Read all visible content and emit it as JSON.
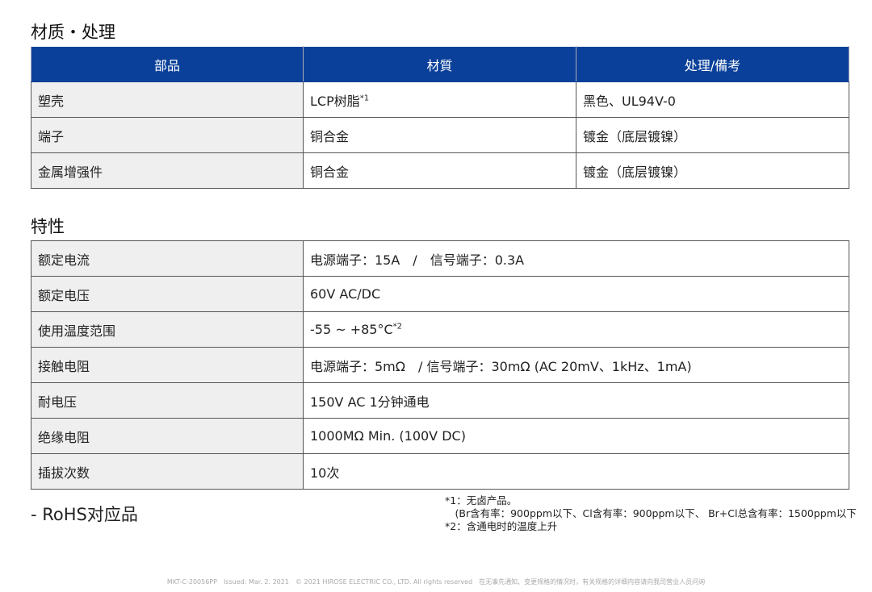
{
  "materials": {
    "title": "材质・处理",
    "headers": [
      "部品",
      "材質",
      "处理/備考"
    ],
    "rows": [
      [
        "塑壳",
        "LCP树脂",
        "*1",
        "黑色、UL94V-0"
      ],
      [
        "端子",
        "铜合金",
        "",
        "镀金（底层镀镍）"
      ],
      [
        "金属增强件",
        "铜合金",
        "",
        "镀金（底层镀镍）"
      ]
    ]
  },
  "properties": {
    "title": "特性",
    "rows": [
      [
        "额定电流",
        "电源端子：15A　/　信号端子：0.3A",
        ""
      ],
      [
        "额定电压",
        "60V AC/DC",
        ""
      ],
      [
        "使用温度范围",
        "-55 ~ +85°C",
        "*2"
      ],
      [
        "接触电阻",
        "电源端子：5mΩ　/ 信号端子：30mΩ (AC 20mV、1kHz、1mA)",
        ""
      ],
      [
        "耐电压",
        "150V AC 1分钟通电",
        ""
      ],
      [
        "绝缘电阻",
        "1000MΩ Min. (100V DC)",
        ""
      ],
      [
        "插拔次数",
        "10次",
        ""
      ]
    ]
  },
  "rohs": "- RoHS对应品",
  "notes": [
    "*1：无卤产品。",
    "　(Br含有率：900ppm以下、Cl含有率：900ppm以下、 Br+Cl总含有率：1500ppm以下",
    "*2：含通电时的温度上升"
  ],
  "footer": "MKT-C-20056PP　Issued: Mar. 2. 2021　© 2021 HIROSE ELECTRIC CO., LTD. All rights reserved　在无事先通知、变更规格的情况时，有关规格的详细内容请向我司营业人员问询",
  "colors": {
    "header": "#0a4099",
    "first_col": "#efefef"
  }
}
